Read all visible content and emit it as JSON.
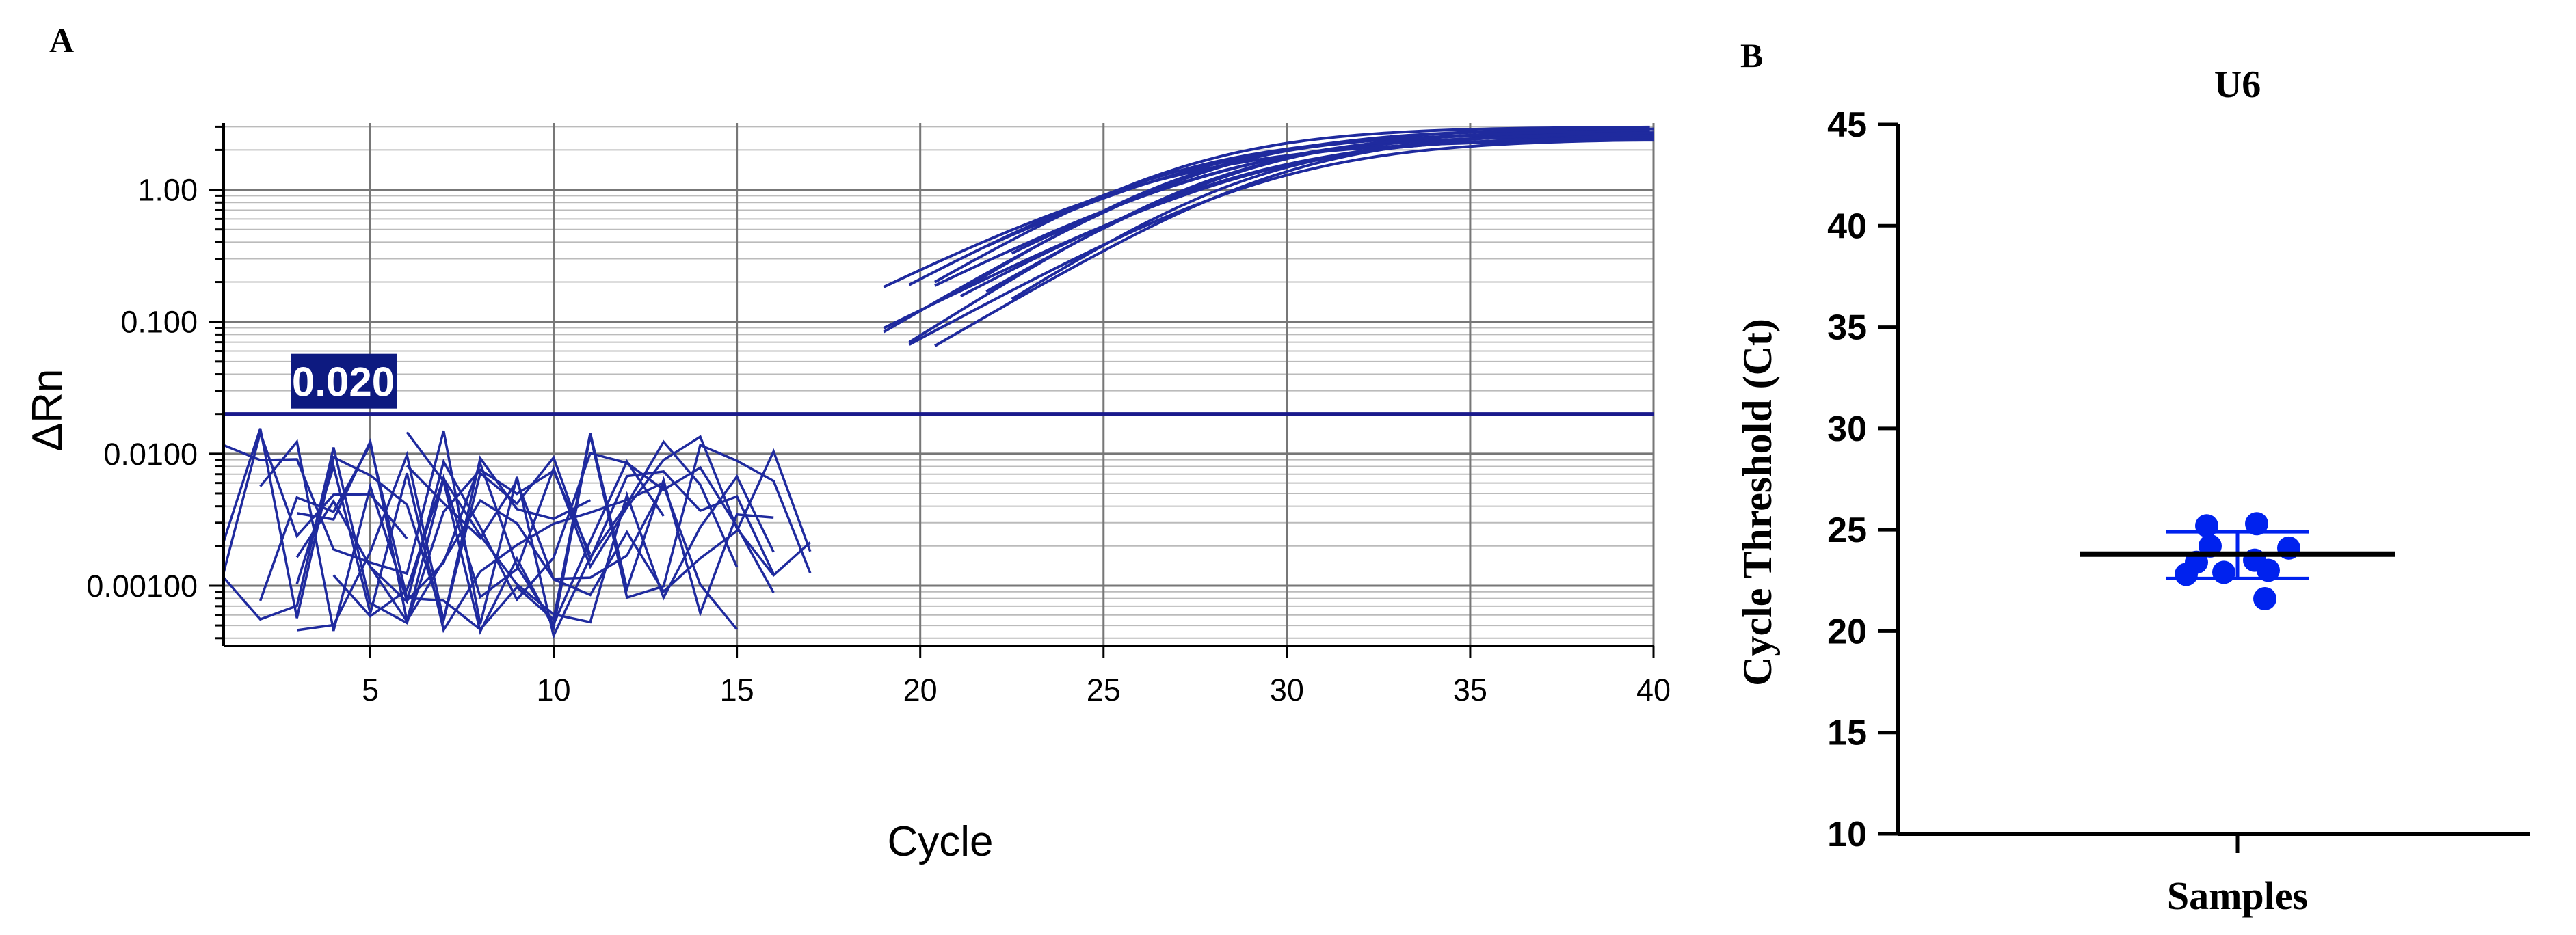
{
  "panels": {
    "a_label": "A",
    "b_label": "B"
  },
  "colors": {
    "amplification": "#1f2a9e",
    "threshold": "#1a1a8c",
    "threshold_box": "#0d1a80",
    "dots": "#0022ee",
    "mean_line": "#000000",
    "grid_major": "#777777",
    "grid_minor": "#bbbbbb"
  },
  "chart_data": [
    {
      "type": "line",
      "title": "",
      "xlabel": "Cycle",
      "ylabel": "ΔRn",
      "xlim": [
        1,
        40
      ],
      "ylim": [
        0.00035,
        3.2
      ],
      "yscale": "log",
      "x_ticks": [
        "5",
        "10",
        "15",
        "20",
        "25",
        "30",
        "35",
        "40"
      ],
      "y_ticks": [
        "0.00100",
        "0.0100",
        "0.100",
        "1.00"
      ],
      "grid": true,
      "threshold": {
        "value": 0.02,
        "label": "0.020"
      },
      "amplification_midpoints": [
        26.6,
        26.9,
        27.2,
        27.5,
        27.7,
        27.9,
        28.1,
        28.3,
        28.5,
        28.7,
        28.9,
        29.1,
        29.4,
        29.7,
        30.0
      ],
      "amplification_plateau_range": [
        2.4,
        3.0
      ],
      "noise_cycles": [
        1,
        17
      ],
      "noise_range": [
        0.0004,
        0.016
      ]
    },
    {
      "type": "scatter",
      "title": "U6",
      "xlabel": "Samples",
      "ylabel": "Cycle Threshold (Ct)",
      "ylim": [
        10,
        45
      ],
      "y_ticks": [
        "10",
        "15",
        "20",
        "25",
        "30",
        "35",
        "40",
        "45"
      ],
      "category": "Samples",
      "values": [
        21.6,
        22.8,
        22.9,
        23.0,
        23.4,
        23.5,
        24.1,
        24.2,
        25.2,
        25.3
      ],
      "mean": 23.8,
      "error_upper": 24.9,
      "error_lower": 22.6
    }
  ]
}
